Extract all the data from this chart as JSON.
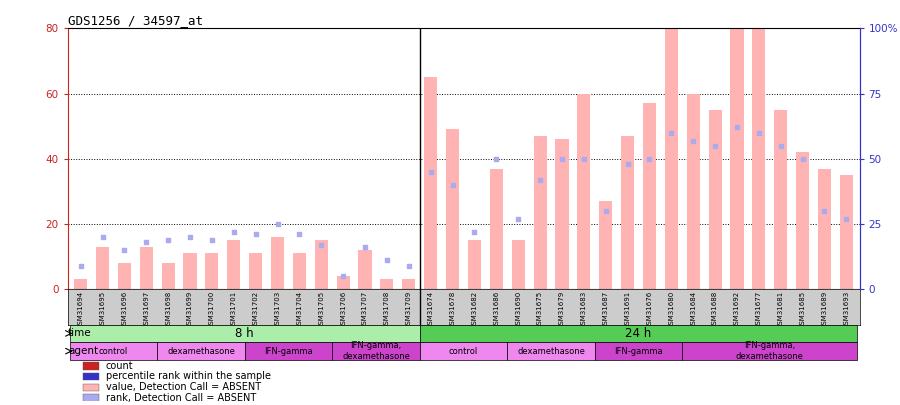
{
  "title": "GDS1256 / 34597_at",
  "samples": [
    "GSM31694",
    "GSM31695",
    "GSM31696",
    "GSM31697",
    "GSM31698",
    "GSM31699",
    "GSM31700",
    "GSM31701",
    "GSM31702",
    "GSM31703",
    "GSM31704",
    "GSM31705",
    "GSM31706",
    "GSM31707",
    "GSM31708",
    "GSM31709",
    "GSM31674",
    "GSM31678",
    "GSM31682",
    "GSM31686",
    "GSM31690",
    "GSM31675",
    "GSM31679",
    "GSM31683",
    "GSM31687",
    "GSM31691",
    "GSM31676",
    "GSM31680",
    "GSM31684",
    "GSM31688",
    "GSM31692",
    "GSM31677",
    "GSM31681",
    "GSM31685",
    "GSM31689",
    "GSM31693"
  ],
  "bar_values": [
    3,
    13,
    8,
    13,
    8,
    11,
    11,
    15,
    11,
    16,
    11,
    15,
    4,
    12,
    3,
    3,
    65,
    49,
    15,
    37,
    15,
    47,
    46,
    60,
    27,
    47,
    57,
    87,
    60,
    55,
    82,
    80,
    55,
    42,
    37,
    35
  ],
  "rank_values": [
    9,
    20,
    15,
    18,
    19,
    20,
    19,
    22,
    21,
    25,
    21,
    17,
    5,
    16,
    11,
    9,
    45,
    40,
    22,
    50,
    27,
    42,
    50,
    50,
    30,
    48,
    50,
    60,
    57,
    55,
    62,
    60,
    55,
    50,
    30,
    27
  ],
  "bar_color": "#ffb3b3",
  "rank_color": "#aaaaee",
  "ylim_left": [
    0,
    80
  ],
  "ylim_right": [
    0,
    100
  ],
  "yticks_left": [
    0,
    20,
    40,
    60,
    80
  ],
  "yticks_right": [
    0,
    25,
    50,
    75,
    100
  ],
  "ytick_labels_right": [
    "0",
    "25",
    "50",
    "75",
    "100%"
  ],
  "time_groups": [
    {
      "label": "8 h",
      "start": 0,
      "end": 15,
      "color": "#aaeeaa"
    },
    {
      "label": "24 h",
      "start": 16,
      "end": 35,
      "color": "#55cc55"
    }
  ],
  "agent_groups_8h": [
    {
      "label": "control",
      "start": 0,
      "end": 3,
      "color": "#ee88ee"
    },
    {
      "label": "dexamethasone",
      "start": 4,
      "end": 7,
      "color": "#ee88ee"
    },
    {
      "label": "IFN-gamma",
      "start": 8,
      "end": 11,
      "color": "#cc44cc"
    },
    {
      "label": "IFN-gamma,\ndexamethasone",
      "start": 12,
      "end": 15,
      "color": "#cc44cc"
    }
  ],
  "agent_groups_24h": [
    {
      "label": "control",
      "start": 16,
      "end": 19,
      "color": "#ee88ee"
    },
    {
      "label": "dexamethasone",
      "start": 20,
      "end": 23,
      "color": "#ee88ee"
    },
    {
      "label": "IFN-gamma",
      "start": 24,
      "end": 27,
      "color": "#cc44cc"
    },
    {
      "label": "IFN-gamma,\ndexamethasone",
      "start": 28,
      "end": 35,
      "color": "#cc44cc"
    }
  ],
  "legend_items": [
    {
      "label": "count",
      "color": "#cc2222"
    },
    {
      "label": "percentile rank within the sample",
      "color": "#3333cc"
    },
    {
      "label": "value, Detection Call = ABSENT",
      "color": "#ffb3b3"
    },
    {
      "label": "rank, Detection Call = ABSENT",
      "color": "#aaaaee"
    }
  ],
  "background_color": "#ffffff",
  "left_axis_color": "#cc2222",
  "right_axis_color": "#3333cc",
  "xtick_bg_color": "#cccccc"
}
